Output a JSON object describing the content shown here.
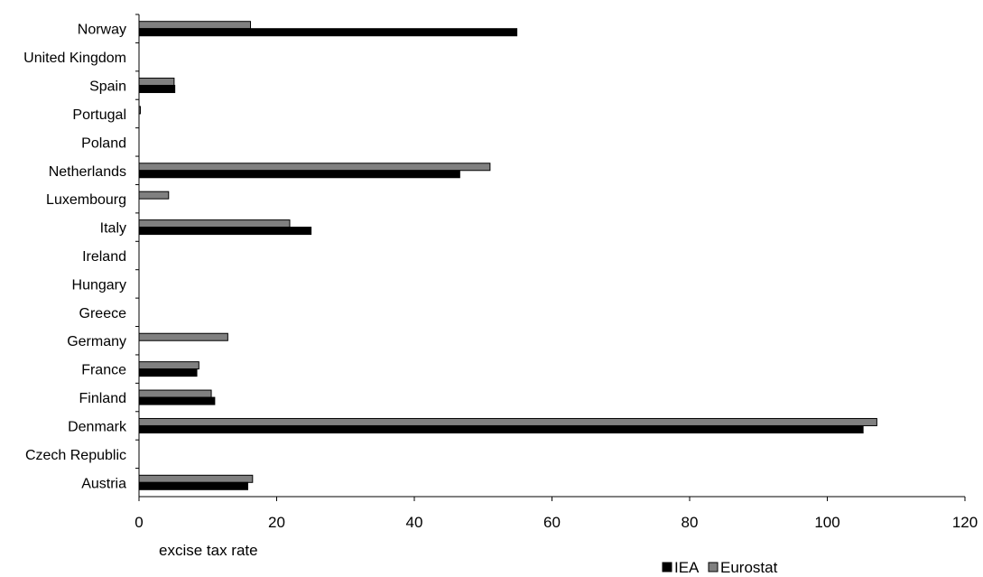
{
  "chart_data": {
    "type": "bar",
    "orientation": "horizontal",
    "categories": [
      "Austria",
      "Czech Republic",
      "Denmark",
      "Finland",
      "France",
      "Germany",
      "Greece",
      "Hungary",
      "Ireland",
      "Italy",
      "Luxembourg",
      "Netherlands",
      "Poland",
      "Portugal",
      "Spain",
      "United Kingdom",
      "Norway"
    ],
    "series": [
      {
        "name": "IEA",
        "color": "#000000",
        "values": [
          15.8,
          0,
          105.2,
          11.0,
          8.4,
          0,
          0,
          0,
          0,
          25.0,
          0,
          46.6,
          0,
          0,
          5.2,
          0,
          54.9
        ]
      },
      {
        "name": "Eurostat",
        "color": "#808080",
        "values": [
          16.5,
          0,
          107.2,
          10.5,
          8.7,
          12.9,
          0,
          0,
          0,
          21.9,
          4.3,
          51.0,
          0,
          0.2,
          5.1,
          0,
          16.2
        ]
      }
    ],
    "title": "",
    "xlabel": "excise tax rate",
    "ylabel": "",
    "xlim": [
      0,
      120
    ],
    "xticks": [
      0,
      20,
      40,
      60,
      80,
      100,
      120
    ],
    "xtick_labels": [
      "0",
      "20",
      "40",
      "60",
      "80",
      "100",
      "120"
    ],
    "grid": false,
    "legend": {
      "position": "bottom-right",
      "entries": [
        "IEA",
        "Eurostat"
      ]
    }
  }
}
